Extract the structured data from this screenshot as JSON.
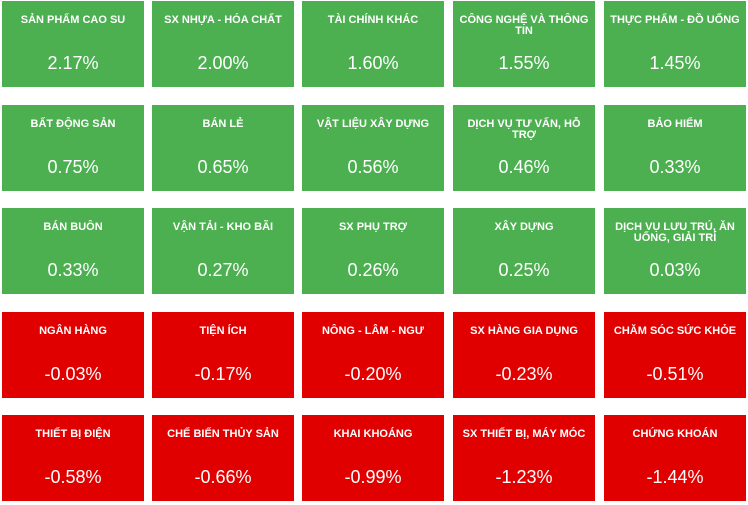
{
  "colors": {
    "positive": "#4cb050",
    "negative": "#e00000",
    "text": "#ffffff"
  },
  "sectors": [
    {
      "name": "SẢN PHẨM CAO SU",
      "change": "2.17%",
      "direction": "up"
    },
    {
      "name": "SX NHỰA - HÓA CHẤT",
      "change": "2.00%",
      "direction": "up"
    },
    {
      "name": "TÀI CHÍNH KHÁC",
      "change": "1.60%",
      "direction": "up"
    },
    {
      "name": "CÔNG NGHỆ VÀ THÔNG TIN",
      "change": "1.55%",
      "direction": "up"
    },
    {
      "name": "THỰC PHẨM - ĐỒ UỐNG",
      "change": "1.45%",
      "direction": "up"
    },
    {
      "name": "BẤT ĐỘNG SẢN",
      "change": "0.75%",
      "direction": "up"
    },
    {
      "name": "BÁN LẺ",
      "change": "0.65%",
      "direction": "up"
    },
    {
      "name": "VẬT LIỆU XÂY DỰNG",
      "change": "0.56%",
      "direction": "up"
    },
    {
      "name": "DỊCH VỤ TƯ VẤN, HỖ TRỢ",
      "change": "0.46%",
      "direction": "up"
    },
    {
      "name": "BẢO HIỂM",
      "change": "0.33%",
      "direction": "up"
    },
    {
      "name": "BÁN BUÔN",
      "change": "0.33%",
      "direction": "up"
    },
    {
      "name": "VẬN TẢI - KHO BÃI",
      "change": "0.27%",
      "direction": "up"
    },
    {
      "name": "SX PHỤ TRỢ",
      "change": "0.26%",
      "direction": "up"
    },
    {
      "name": "XÂY DỰNG",
      "change": "0.25%",
      "direction": "up"
    },
    {
      "name": "DỊCH VỤ LƯU TRÚ, ĂN UỐNG, GIẢI TRÍ",
      "change": "0.03%",
      "direction": "up"
    },
    {
      "name": "NGÂN HÀNG",
      "change": "-0.03%",
      "direction": "down"
    },
    {
      "name": "TIỆN ÍCH",
      "change": "-0.17%",
      "direction": "down"
    },
    {
      "name": "NÔNG - LÂM - NGƯ",
      "change": "-0.20%",
      "direction": "down"
    },
    {
      "name": "SX HÀNG GIA DỤNG",
      "change": "-0.23%",
      "direction": "down"
    },
    {
      "name": "CHĂM SÓC SỨC KHỎE",
      "change": "-0.51%",
      "direction": "down"
    },
    {
      "name": "THIẾT BỊ ĐIỆN",
      "change": "-0.58%",
      "direction": "down"
    },
    {
      "name": "CHẾ BIẾN THỦY SẢN",
      "change": "-0.66%",
      "direction": "down"
    },
    {
      "name": "KHAI KHOÁNG",
      "change": "-0.99%",
      "direction": "down"
    },
    {
      "name": "SX THIẾT BỊ, MÁY MÓC",
      "change": "-1.23%",
      "direction": "down"
    },
    {
      "name": "CHỨNG KHOÁN",
      "change": "-1.44%",
      "direction": "down"
    }
  ]
}
